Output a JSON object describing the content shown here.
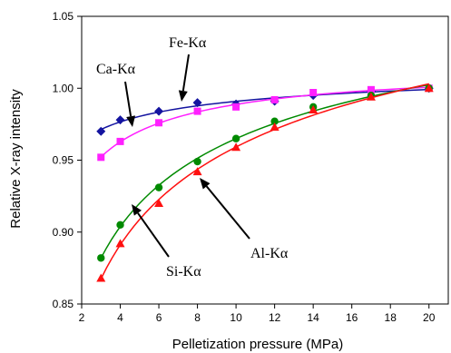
{
  "chart_data": {
    "type": "scatter",
    "xlabel": "Pelletization pressure (MPa)",
    "ylabel": "Relative X-ray intensity",
    "xlim": [
      2,
      21
    ],
    "ylim": [
      0.85,
      1.05
    ],
    "xticks": [
      "2",
      "4",
      "6",
      "8",
      "10",
      "12",
      "14",
      "16",
      "18",
      "20"
    ],
    "yticks": [
      "0.85",
      "0.90",
      "0.95",
      "1.00",
      "1.05"
    ],
    "grid": false,
    "legend": "none",
    "series": [
      {
        "name": "Fe-Kα",
        "color": "#1414a0",
        "marker": "diamond",
        "x": [
          3,
          4,
          6,
          8,
          10,
          12,
          14,
          17,
          20
        ],
        "y": [
          0.97,
          0.978,
          0.984,
          0.99,
          0.989,
          0.991,
          0.995,
          0.998,
          1.0
        ]
      },
      {
        "name": "Ca-Kα",
        "color": "#ff20ff",
        "marker": "square",
        "x": [
          3,
          4,
          6,
          8,
          10,
          12,
          14,
          17,
          20
        ],
        "y": [
          0.952,
          0.963,
          0.976,
          0.984,
          0.987,
          0.992,
          0.997,
          0.999,
          1.0
        ]
      },
      {
        "name": "Si-Kα",
        "color": "#008a00",
        "marker": "circle",
        "x": [
          3,
          4,
          6,
          8,
          10,
          12,
          14,
          17,
          20
        ],
        "y": [
          0.882,
          0.905,
          0.931,
          0.949,
          0.965,
          0.977,
          0.987,
          0.995,
          1.0
        ]
      },
      {
        "name": "Al-Kα",
        "color": "#ff1010",
        "marker": "triangle",
        "x": [
          3,
          4,
          6,
          8,
          10,
          12,
          14,
          17,
          20
        ],
        "y": [
          0.868,
          0.892,
          0.92,
          0.942,
          0.959,
          0.973,
          0.985,
          0.994,
          1.0
        ]
      }
    ],
    "annotations": [
      {
        "label": "Fe-Kα",
        "target_series": "Fe-Kα"
      },
      {
        "label": "Ca-Kα",
        "target_series": "Ca-Kα"
      },
      {
        "label": "Si-Kα",
        "target_series": "Si-Kα"
      },
      {
        "label": "Al-Kα",
        "target_series": "Al-Kα"
      }
    ]
  }
}
